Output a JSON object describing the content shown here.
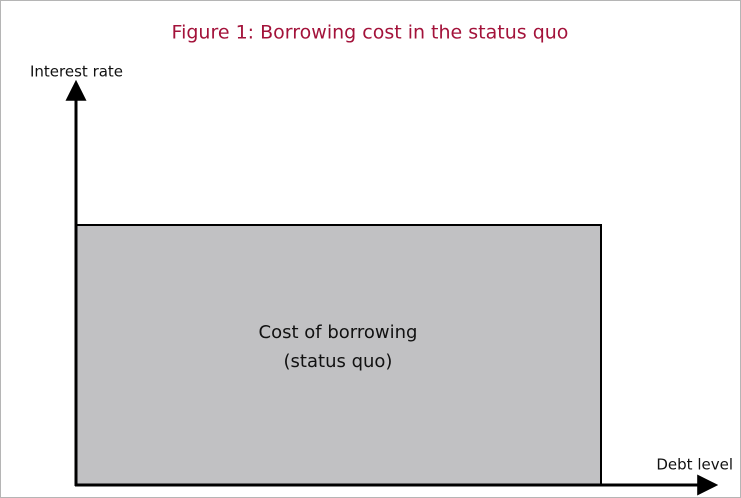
{
  "title": "Figure 1: Borrowing cost in the status quo",
  "y_axis_label": "Interest rate",
  "x_axis_label": "Debt level",
  "region": {
    "label_lines": [
      "Cost of borrowing",
      "(status quo)"
    ]
  }
}
